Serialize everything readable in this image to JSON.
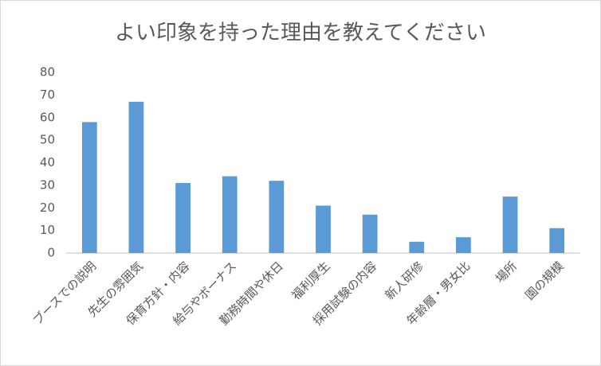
{
  "chart_data": {
    "type": "bar",
    "title": "よい印象を持った理由を教えてください",
    "categories": [
      "ブースでの説明",
      "先生の雰囲気",
      "保育方針・内容",
      "給与やボーナス",
      "勤務時間や休日",
      "福利厚生",
      "採用試験の内容",
      "新人研修",
      "年齢層・男女比",
      "場所",
      "園の規模"
    ],
    "values": [
      58,
      67,
      31,
      34,
      32,
      21,
      17,
      5,
      7,
      25,
      11
    ],
    "color": "#5b9bd5",
    "ylim": [
      0,
      80
    ],
    "yticks": [
      0,
      10,
      20,
      30,
      40,
      50,
      60,
      70,
      80
    ],
    "grid": false
  }
}
